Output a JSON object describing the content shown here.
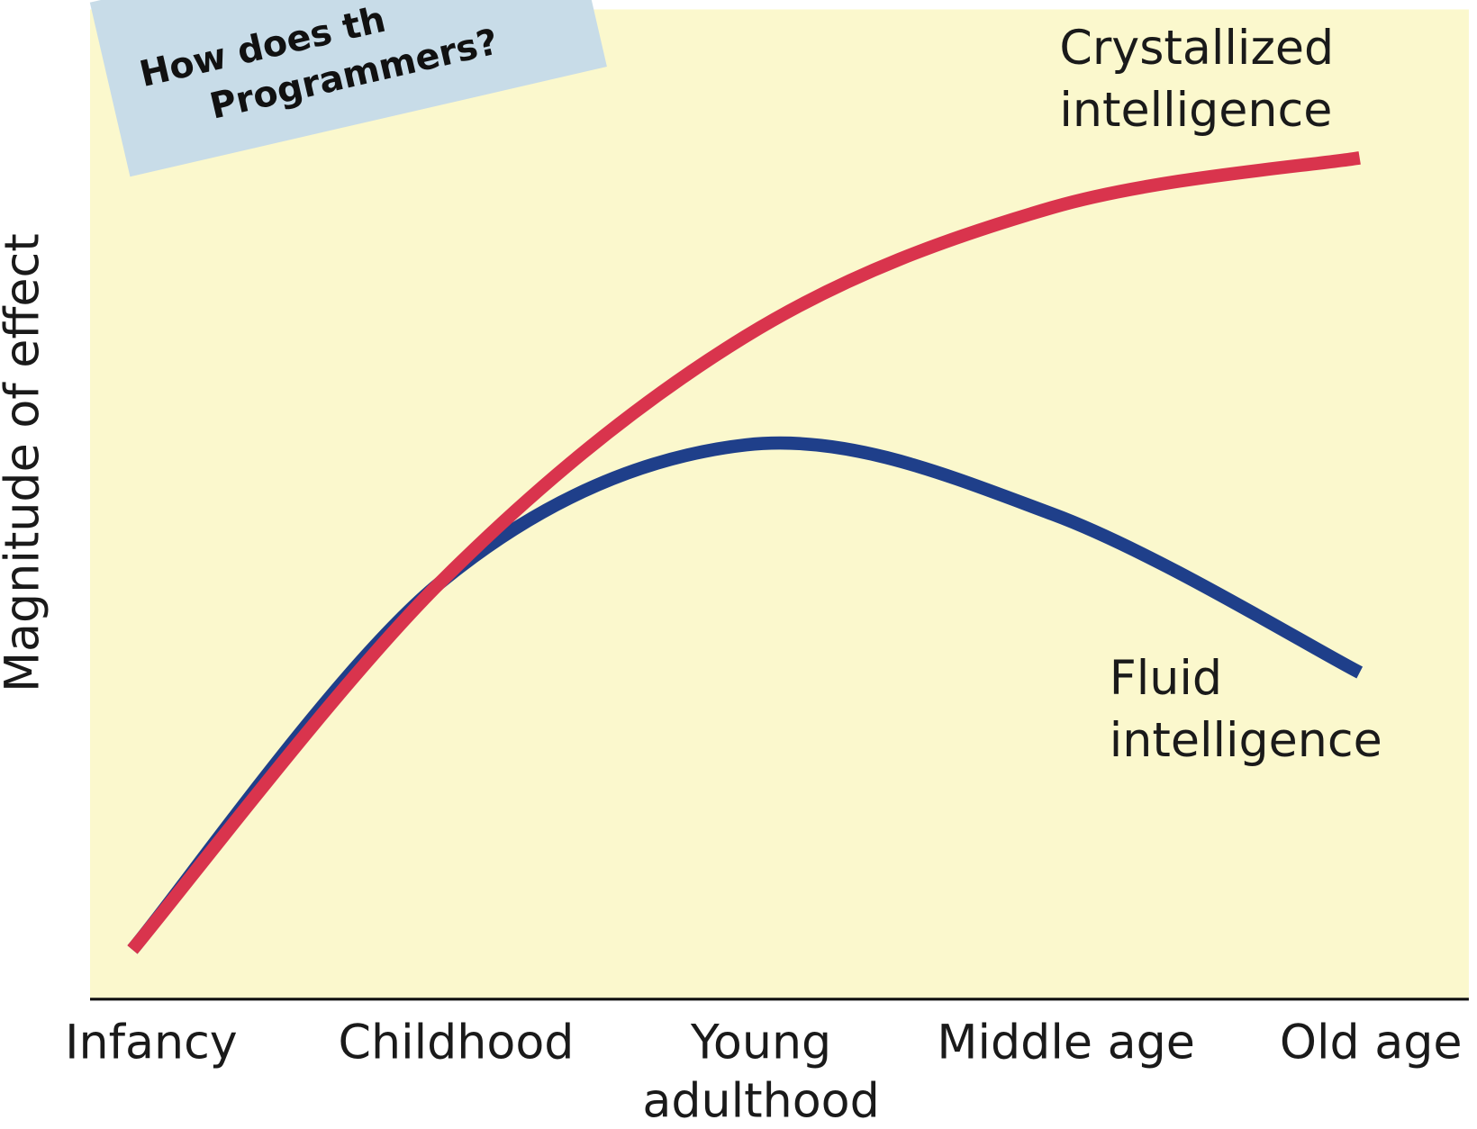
{
  "note": {
    "lines": [
      "How does th",
      "Programmers?"
    ]
  },
  "chart_data": {
    "type": "line",
    "ylabel": "Magnitude of effect",
    "categories": [
      "Infancy",
      "Childhood",
      "Young adulthood",
      "Middle age",
      "Old age"
    ],
    "ylim": [
      0,
      100
    ],
    "series": [
      {
        "name": "Fluid intelligence",
        "color": "#1f3f8a",
        "values": [
          5,
          42,
          56,
          49,
          33
        ]
      },
      {
        "name": "Crystallized intelligence",
        "color": "#d9344d",
        "values": [
          5,
          42,
          67,
          80,
          85
        ]
      }
    ]
  }
}
